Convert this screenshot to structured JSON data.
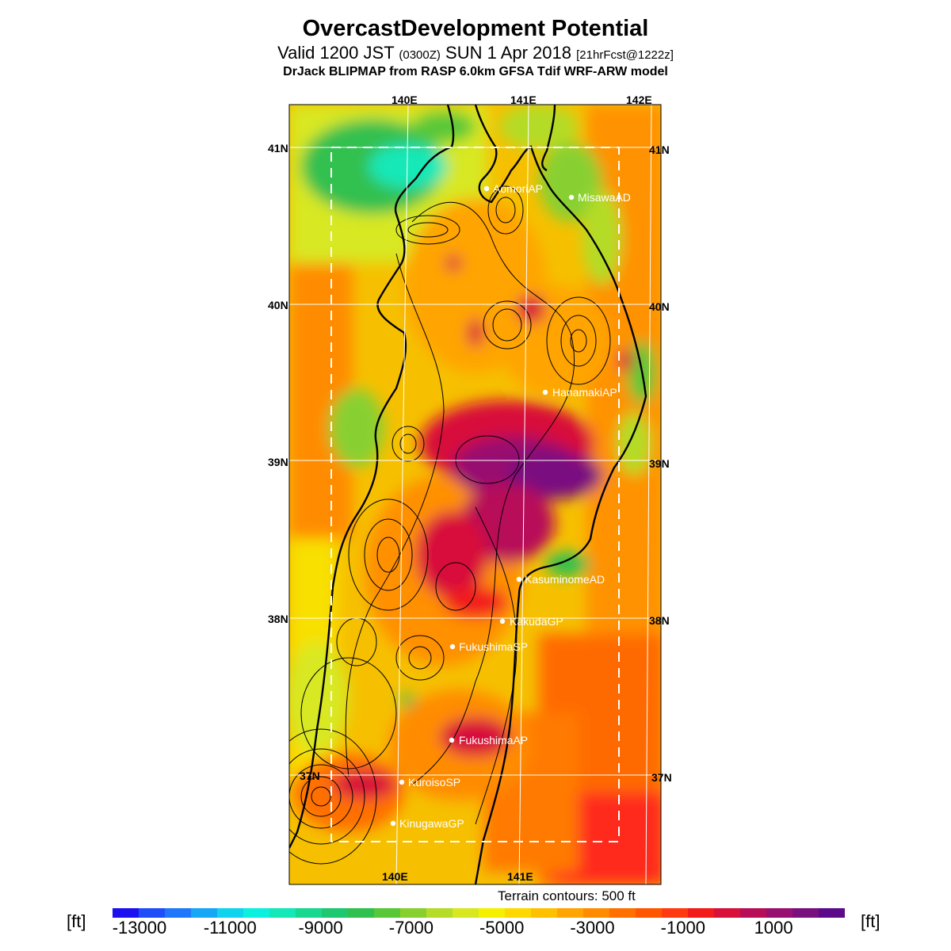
{
  "header": {
    "title": "OvercastDevelopment Potential",
    "valid_main": "Valid 1200 JST",
    "valid_z": "(0300Z)",
    "valid_date": "SUN 1 Apr 2018",
    "fcst": "[21hrFcst@1222z]",
    "model_line": "DrJack BLIPMAP from RASP 6.0km GFSA Tdif WRF-ARW model"
  },
  "map": {
    "lon_labels_top": [
      "140E",
      "141E",
      "142E"
    ],
    "lon_labels_bottom": [
      "140E",
      "141E"
    ],
    "lat_labels_left": [
      "41N",
      "40N",
      "39N",
      "38N",
      "37N"
    ],
    "lat_labels_right": [
      "41N",
      "40N",
      "39N",
      "38N",
      "37N"
    ],
    "stations": [
      {
        "name": "AomoriAP"
      },
      {
        "name": "MisawaAD"
      },
      {
        "name": "HanamakiAP"
      },
      {
        "name": "KasuminomeAD"
      },
      {
        "name": "KakudaGP"
      },
      {
        "name": "FukushimaSP"
      },
      {
        "name": "FukushimaAP"
      },
      {
        "name": "KuroisoSP"
      },
      {
        "name": "KinugawaGP"
      }
    ],
    "terrain_note": "Terrain contours: 500 ft"
  },
  "colorbar": {
    "unit_left": "[ft]",
    "unit_right": "[ft]",
    "ticks": [
      "-13000",
      "-11000",
      "-9000",
      "-7000",
      "-5000",
      "-3000",
      "-1000",
      "1000"
    ],
    "colors": [
      "#1a10f0",
      "#1e4ef8",
      "#1f78fa",
      "#16a8f7",
      "#10d4ee",
      "#0cf0e0",
      "#12e8b8",
      "#18d890",
      "#1ec870",
      "#30c050",
      "#58c838",
      "#88d030",
      "#b4dc28",
      "#d8e820",
      "#f4f000",
      "#ffd800",
      "#ffc000",
      "#ffa400",
      "#ff8c00",
      "#ff7000",
      "#ff5600",
      "#ff3a10",
      "#f21a1a",
      "#d8103a",
      "#b80e58",
      "#981070",
      "#7a1080",
      "#5c0a8a"
    ]
  }
}
